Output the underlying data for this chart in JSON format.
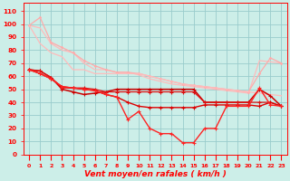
{
  "x": [
    0,
    1,
    2,
    3,
    4,
    5,
    6,
    7,
    8,
    9,
    10,
    11,
    12,
    13,
    14,
    15,
    16,
    17,
    18,
    19,
    20,
    21,
    22,
    23
  ],
  "line_pink1": [
    99,
    97,
    85,
    80,
    78,
    70,
    65,
    65,
    63,
    63,
    61,
    58,
    56,
    54,
    53,
    52,
    51,
    50,
    49,
    48,
    47,
    72,
    71,
    70
  ],
  "line_pink2": [
    99,
    105,
    86,
    82,
    78,
    72,
    68,
    65,
    63,
    63,
    62,
    60,
    58,
    56,
    54,
    53,
    52,
    51,
    50,
    49,
    48,
    62,
    74,
    70
  ],
  "line_pink3": [
    99,
    85,
    78,
    75,
    65,
    65,
    62,
    62,
    62,
    62,
    62,
    60,
    58,
    56,
    54,
    53,
    52,
    51,
    50,
    49,
    48,
    47,
    46,
    45
  ],
  "line_red1": [
    65,
    62,
    58,
    52,
    51,
    50,
    49,
    46,
    44,
    40,
    37,
    36,
    36,
    36,
    36,
    36,
    38,
    38,
    38,
    38,
    38,
    37,
    40,
    37
  ],
  "line_red2": [
    65,
    64,
    59,
    50,
    48,
    46,
    47,
    48,
    50,
    50,
    50,
    50,
    50,
    50,
    50,
    50,
    40,
    40,
    40,
    40,
    40,
    50,
    45,
    37
  ],
  "line_red3": [
    65,
    62,
    58,
    52,
    51,
    50,
    49,
    46,
    44,
    27,
    33,
    20,
    16,
    16,
    9,
    9,
    20,
    20,
    37,
    37,
    37,
    51,
    38,
    37
  ],
  "line_red4": [
    65,
    64,
    59,
    51,
    51,
    51,
    50,
    48,
    48,
    48,
    48,
    48,
    48,
    48,
    48,
    48,
    40,
    40,
    40,
    40,
    40,
    40,
    40,
    37
  ],
  "xlabel": "Vent moyen/en rafales ( km/h )",
  "bg_color": "#cceee8",
  "grid_color": "#99cccc",
  "pink_color1": "#ffbbbb",
  "pink_color2": "#ffaaaa",
  "pink_color3": "#ffbbbb",
  "red1_color": "#dd0000",
  "red2_color": "#cc0000",
  "red3_color": "#ff2222",
  "red4_color": "#dd1111",
  "yticks": [
    0,
    10,
    20,
    30,
    40,
    50,
    60,
    70,
    80,
    90,
    100,
    110
  ],
  "xticks": [
    0,
    1,
    2,
    3,
    4,
    5,
    6,
    7,
    8,
    9,
    10,
    11,
    12,
    13,
    14,
    15,
    16,
    17,
    18,
    19,
    20,
    21,
    22,
    23
  ]
}
